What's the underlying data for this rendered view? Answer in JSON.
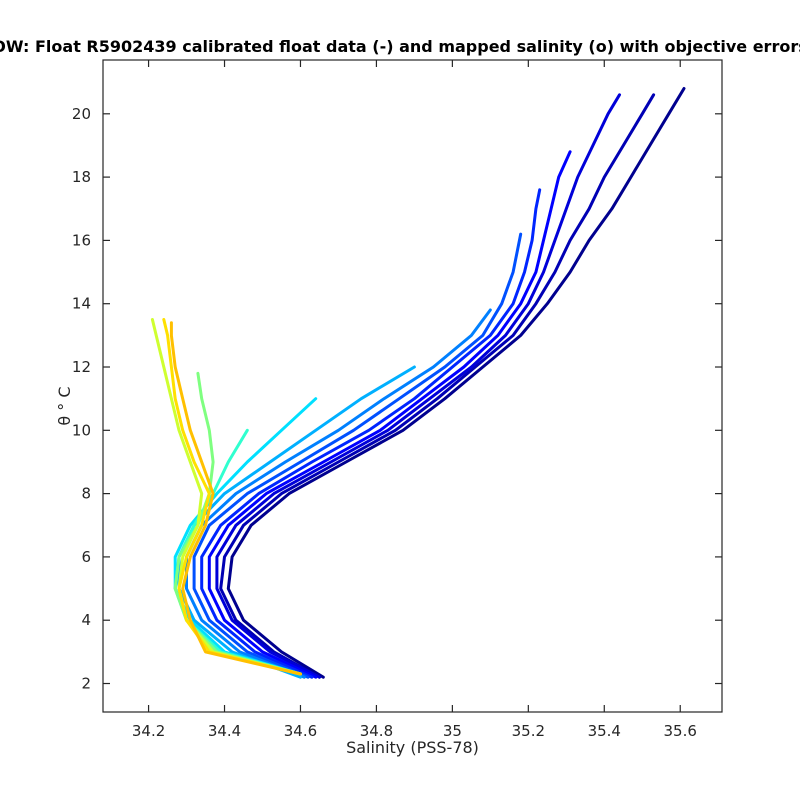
{
  "chart_data": {
    "type": "line",
    "title": "OW: Float R5902439 calibrated float data (-) and mapped salinity (o) with objective errors",
    "xlabel": "Salinity (PSS-78)",
    "ylabel": "θ ° C",
    "xlim": [
      34.08,
      35.71
    ],
    "ylim": [
      1.1,
      21.7
    ],
    "xticks": [
      34.2,
      34.4,
      34.6,
      34.8,
      35,
      35.2,
      35.4,
      35.6
    ],
    "xtick_labels": [
      "34.2",
      "34.4",
      "34.6",
      "34.8",
      "35",
      "35.2",
      "35.4",
      "35.6"
    ],
    "yticks": [
      2,
      4,
      6,
      8,
      10,
      12,
      14,
      16,
      18,
      20
    ],
    "ytick_labels": [
      "2",
      "4",
      "6",
      "8",
      "10",
      "12",
      "14",
      "16",
      "18",
      "20"
    ],
    "grid": false,
    "legend": "none",
    "colormap": "jet",
    "series": [
      {
        "color": "#00008f",
        "points": [
          [
            34.66,
            2.2
          ],
          [
            34.55,
            3.0
          ],
          [
            34.45,
            4.0
          ],
          [
            34.41,
            5.0
          ],
          [
            34.42,
            6.0
          ],
          [
            34.47,
            7.0
          ],
          [
            34.57,
            8.0
          ],
          [
            34.72,
            9.0
          ],
          [
            34.87,
            10.0
          ],
          [
            34.98,
            11.0
          ],
          [
            35.08,
            12.0
          ],
          [
            35.18,
            13.0
          ],
          [
            35.25,
            14.0
          ],
          [
            35.31,
            15.0
          ],
          [
            35.36,
            16.0
          ],
          [
            35.42,
            17.0
          ],
          [
            35.47,
            18.0
          ],
          [
            35.52,
            19.0
          ],
          [
            35.57,
            20.0
          ],
          [
            35.61,
            20.8
          ]
        ]
      },
      {
        "color": "#0000b5",
        "points": [
          [
            34.65,
            2.2
          ],
          [
            34.53,
            3.0
          ],
          [
            34.43,
            4.0
          ],
          [
            34.39,
            5.0
          ],
          [
            34.4,
            6.0
          ],
          [
            34.45,
            7.0
          ],
          [
            34.55,
            8.0
          ],
          [
            34.7,
            9.0
          ],
          [
            34.85,
            10.0
          ],
          [
            34.96,
            11.0
          ],
          [
            35.06,
            12.0
          ],
          [
            35.16,
            13.0
          ],
          [
            35.22,
            14.0
          ],
          [
            35.27,
            15.0
          ],
          [
            35.31,
            16.0
          ],
          [
            35.36,
            17.0
          ],
          [
            35.4,
            18.0
          ],
          [
            35.45,
            19.0
          ],
          [
            35.5,
            20.0
          ],
          [
            35.53,
            20.6
          ]
        ]
      },
      {
        "color": "#0000d9",
        "points": [
          [
            34.65,
            2.2
          ],
          [
            34.52,
            3.0
          ],
          [
            34.42,
            4.0
          ],
          [
            34.38,
            5.0
          ],
          [
            34.38,
            6.0
          ],
          [
            34.43,
            7.0
          ],
          [
            34.53,
            8.0
          ],
          [
            34.68,
            9.0
          ],
          [
            34.83,
            10.0
          ],
          [
            34.94,
            11.0
          ],
          [
            35.05,
            12.0
          ],
          [
            35.14,
            13.0
          ],
          [
            35.2,
            14.0
          ],
          [
            35.24,
            15.0
          ],
          [
            35.27,
            16.0
          ],
          [
            35.3,
            17.0
          ],
          [
            35.33,
            18.0
          ],
          [
            35.37,
            19.0
          ],
          [
            35.41,
            20.0
          ],
          [
            35.44,
            20.6
          ]
        ]
      },
      {
        "color": "#0000ff",
        "points": [
          [
            34.64,
            2.2
          ],
          [
            34.5,
            3.0
          ],
          [
            34.4,
            4.0
          ],
          [
            34.36,
            5.0
          ],
          [
            34.36,
            6.0
          ],
          [
            34.41,
            7.0
          ],
          [
            34.51,
            8.0
          ],
          [
            34.66,
            9.0
          ],
          [
            34.81,
            10.0
          ],
          [
            34.92,
            11.0
          ],
          [
            35.03,
            12.0
          ],
          [
            35.12,
            13.0
          ],
          [
            35.18,
            14.0
          ],
          [
            35.22,
            15.0
          ],
          [
            35.24,
            16.0
          ],
          [
            35.26,
            17.0
          ],
          [
            35.28,
            18.0
          ],
          [
            35.31,
            18.8
          ]
        ]
      },
      {
        "color": "#0025ff",
        "points": [
          [
            34.63,
            2.2
          ],
          [
            34.48,
            3.0
          ],
          [
            34.38,
            4.0
          ],
          [
            34.34,
            5.0
          ],
          [
            34.34,
            6.0
          ],
          [
            34.39,
            7.0
          ],
          [
            34.49,
            8.0
          ],
          [
            34.63,
            9.0
          ],
          [
            34.78,
            10.0
          ],
          [
            34.9,
            11.0
          ],
          [
            35.0,
            12.0
          ],
          [
            35.1,
            13.0
          ],
          [
            35.16,
            14.0
          ],
          [
            35.19,
            15.0
          ],
          [
            35.21,
            16.0
          ],
          [
            35.22,
            17.0
          ],
          [
            35.23,
            17.6
          ]
        ]
      },
      {
        "color": "#0050ff",
        "points": [
          [
            34.62,
            2.2
          ],
          [
            34.46,
            3.0
          ],
          [
            34.36,
            4.0
          ],
          [
            34.32,
            5.0
          ],
          [
            34.32,
            6.0
          ],
          [
            34.36,
            7.0
          ],
          [
            34.46,
            8.0
          ],
          [
            34.6,
            9.0
          ],
          [
            34.74,
            10.0
          ],
          [
            34.86,
            11.0
          ],
          [
            34.98,
            12.0
          ],
          [
            35.08,
            13.0
          ],
          [
            35.13,
            14.0
          ],
          [
            35.16,
            15.0
          ],
          [
            35.18,
            16.2
          ]
        ]
      },
      {
        "color": "#0080ff",
        "points": [
          [
            34.61,
            2.2
          ],
          [
            34.44,
            3.0
          ],
          [
            34.34,
            4.0
          ],
          [
            34.3,
            5.0
          ],
          [
            34.3,
            6.0
          ],
          [
            34.34,
            7.0
          ],
          [
            34.43,
            8.0
          ],
          [
            34.56,
            9.0
          ],
          [
            34.7,
            10.0
          ],
          [
            34.82,
            11.0
          ],
          [
            34.95,
            12.0
          ],
          [
            35.05,
            13.0
          ],
          [
            35.1,
            13.8
          ]
        ]
      },
      {
        "color": "#00b0ff",
        "points": [
          [
            34.6,
            2.2
          ],
          [
            34.42,
            3.0
          ],
          [
            34.32,
            4.0
          ],
          [
            34.28,
            5.0
          ],
          [
            34.28,
            6.0
          ],
          [
            34.32,
            7.0
          ],
          [
            34.4,
            8.0
          ],
          [
            34.52,
            9.0
          ],
          [
            34.64,
            10.0
          ],
          [
            34.76,
            11.0
          ],
          [
            34.9,
            12.0
          ]
        ]
      },
      {
        "color": "#00e0ff",
        "points": [
          [
            34.6,
            2.3
          ],
          [
            34.4,
            3.0
          ],
          [
            34.31,
            4.0
          ],
          [
            34.27,
            5.0
          ],
          [
            34.27,
            6.0
          ],
          [
            34.31,
            7.0
          ],
          [
            34.38,
            8.0
          ],
          [
            34.46,
            9.0
          ],
          [
            34.55,
            10.0
          ],
          [
            34.64,
            11.0
          ]
        ]
      },
      {
        "color": "#30ffcf",
        "points": [
          [
            34.6,
            2.3
          ],
          [
            34.39,
            3.0
          ],
          [
            34.3,
            4.0
          ],
          [
            34.27,
            5.0
          ],
          [
            34.28,
            6.0
          ],
          [
            34.32,
            7.0
          ],
          [
            34.37,
            8.0
          ],
          [
            34.41,
            9.0
          ],
          [
            34.46,
            10.0
          ]
        ]
      },
      {
        "color": "#7fff80",
        "points": [
          [
            34.6,
            2.3
          ],
          [
            34.38,
            3.0
          ],
          [
            34.3,
            4.0
          ],
          [
            34.27,
            5.0
          ],
          [
            34.28,
            6.0
          ],
          [
            34.33,
            7.0
          ],
          [
            34.36,
            8.0
          ],
          [
            34.37,
            9.0
          ],
          [
            34.36,
            10.0
          ],
          [
            34.34,
            11.0
          ],
          [
            34.33,
            11.8
          ]
        ]
      },
      {
        "color": "#cfff30",
        "points": [
          [
            34.6,
            2.3
          ],
          [
            34.37,
            3.0
          ],
          [
            34.3,
            4.0
          ],
          [
            34.28,
            5.0
          ],
          [
            34.29,
            6.0
          ],
          [
            34.33,
            7.0
          ],
          [
            34.34,
            8.0
          ],
          [
            34.31,
            9.0
          ],
          [
            34.28,
            10.0
          ],
          [
            34.26,
            11.0
          ],
          [
            34.24,
            12.0
          ],
          [
            34.22,
            13.0
          ],
          [
            34.21,
            13.5
          ]
        ]
      },
      {
        "color": "#ffe000",
        "points": [
          [
            34.6,
            2.3
          ],
          [
            34.36,
            3.0
          ],
          [
            34.3,
            4.0
          ],
          [
            34.28,
            5.0
          ],
          [
            34.3,
            6.0
          ],
          [
            34.34,
            7.0
          ],
          [
            34.36,
            8.0
          ],
          [
            34.32,
            9.0
          ],
          [
            34.29,
            10.0
          ],
          [
            34.27,
            11.0
          ],
          [
            34.26,
            12.0
          ],
          [
            34.25,
            13.0
          ],
          [
            34.24,
            13.5
          ]
        ]
      },
      {
        "color": "#ffc000",
        "points": [
          [
            34.6,
            2.3
          ],
          [
            34.35,
            3.0
          ],
          [
            34.31,
            4.0
          ],
          [
            34.29,
            5.0
          ],
          [
            34.31,
            6.0
          ],
          [
            34.35,
            7.0
          ],
          [
            34.37,
            8.0
          ],
          [
            34.34,
            9.0
          ],
          [
            34.31,
            10.0
          ],
          [
            34.29,
            11.0
          ],
          [
            34.27,
            12.0
          ],
          [
            34.26,
            13.0
          ],
          [
            34.26,
            13.4
          ]
        ]
      }
    ]
  }
}
